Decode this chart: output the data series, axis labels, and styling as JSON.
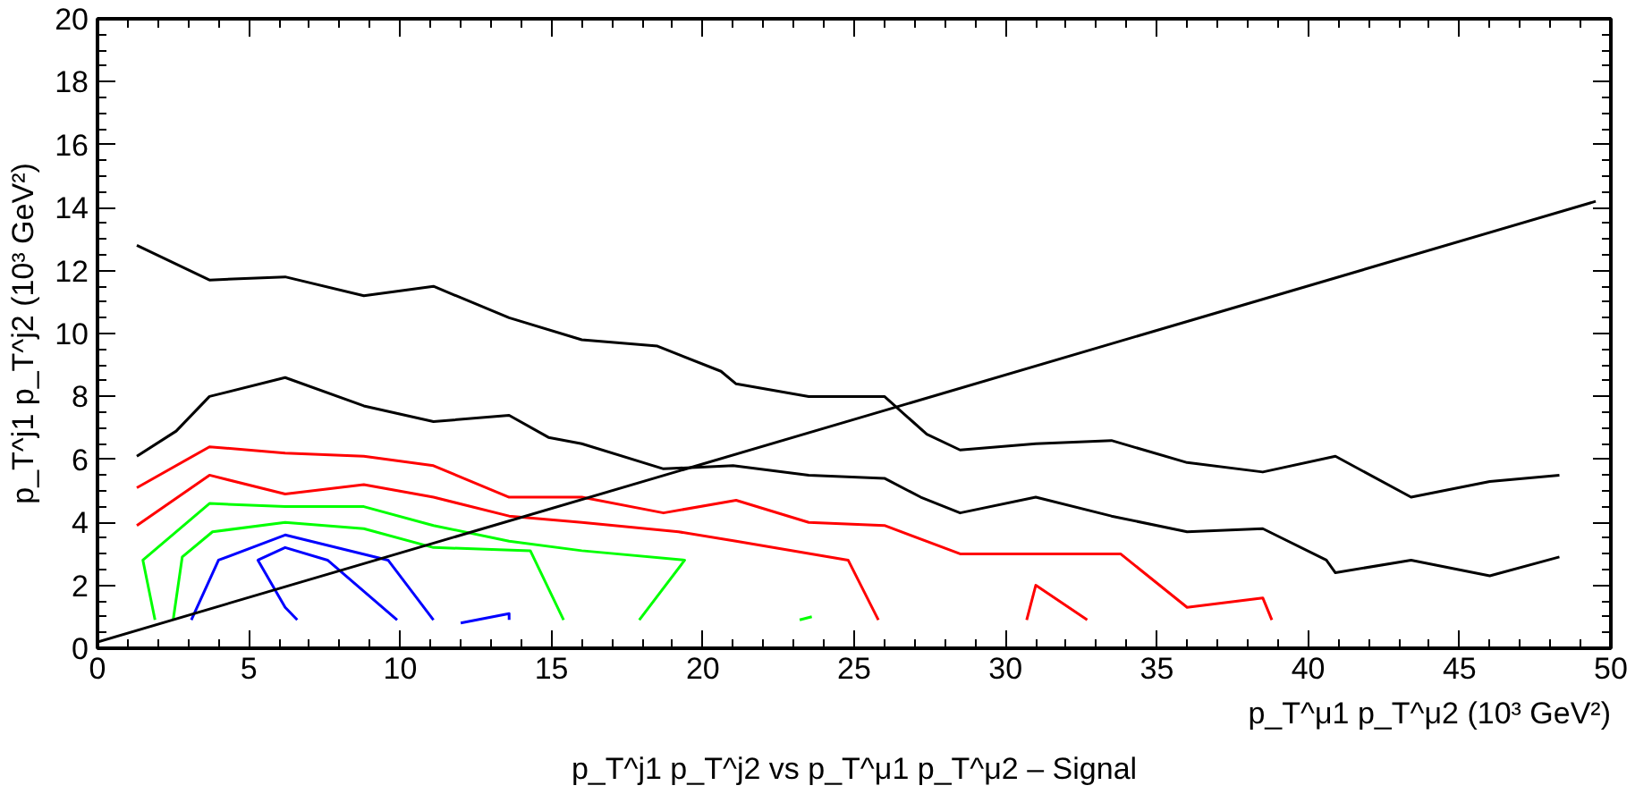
{
  "chart_data": {
    "type": "line",
    "title": "p_T^j1 p_T^j2 vs p_T^μ1 p_T^μ2 – Signal",
    "xlabel": "p_T^μ1 p_T^μ2 (10³ GeV²)",
    "ylabel": "p_T^j1 p_T^j2 (10³ GeV²)",
    "xlim": [
      0,
      50
    ],
    "ylim": [
      0,
      20
    ],
    "xticks": [
      0,
      5,
      10,
      15,
      20,
      25,
      30,
      35,
      40,
      45,
      50
    ],
    "yticks": [
      0,
      2,
      4,
      6,
      8,
      10,
      12,
      14,
      16,
      18,
      20
    ],
    "grid": false,
    "marker": "none",
    "line_style": "solid",
    "series": [
      {
        "color": "#000000",
        "x": [
          1.3,
          3.7,
          6.2,
          8.8,
          11.1,
          13.6,
          16.0,
          18.5,
          20.6,
          21.1,
          23.5,
          26.0,
          27.4,
          28.5,
          31.0,
          33.5,
          36.0,
          38.5,
          40.9,
          43.4,
          46.0,
          48.3
        ],
        "values": [
          12.8,
          11.7,
          11.8,
          11.2,
          11.5,
          10.5,
          9.8,
          9.6,
          8.8,
          8.4,
          8.0,
          8.0,
          6.8,
          6.3,
          6.5,
          6.6,
          5.9,
          5.6,
          6.1,
          4.8,
          5.3,
          5.5
        ]
      },
      {
        "color": "#000000",
        "x": [
          1.3,
          2.6,
          3.7,
          6.2,
          8.8,
          11.1,
          13.6,
          14.9,
          16.0,
          18.7,
          21.0,
          23.5,
          26.0,
          27.2,
          28.5,
          31.0,
          33.5,
          36.0,
          38.5,
          40.6,
          40.9,
          43.4,
          46.0,
          48.3
        ],
        "values": [
          6.1,
          6.9,
          8.0,
          8.6,
          7.7,
          7.2,
          7.4,
          6.7,
          6.5,
          5.7,
          5.8,
          5.5,
          5.4,
          4.8,
          4.3,
          4.8,
          4.2,
          3.7,
          3.8,
          2.8,
          2.4,
          2.8,
          2.3,
          2.9
        ]
      },
      {
        "color": "#ff0000",
        "x": [
          1.3,
          3.7,
          6.2,
          8.8,
          11.1,
          13.6,
          16.0,
          18.7,
          21.1,
          23.5,
          26.0,
          28.5,
          31.0,
          33.8,
          36.0,
          38.5,
          38.8
        ],
        "values": [
          5.1,
          6.4,
          6.2,
          6.1,
          5.8,
          4.8,
          4.8,
          4.3,
          4.7,
          4.0,
          3.9,
          3.0,
          3.0,
          3.0,
          1.3,
          1.6,
          0.9
        ]
      },
      {
        "color": "#ff0000",
        "x": [
          1.3,
          3.7,
          6.2,
          8.8,
          11.1,
          13.6,
          16.0,
          19.2,
          21.1,
          24.8,
          25.8
        ],
        "values": [
          3.9,
          5.5,
          4.9,
          5.2,
          4.8,
          4.2,
          4.0,
          3.7,
          3.4,
          2.8,
          0.9
        ]
      },
      {
        "color": "#ff0000",
        "x": [
          30.7,
          31.0,
          32.7
        ],
        "values": [
          0.9,
          2.0,
          0.9
        ]
      },
      {
        "color": "#00ff00",
        "x": [
          1.9,
          1.5,
          3.7,
          6.2,
          8.8,
          11.1,
          13.6,
          16.0,
          19.4,
          17.9
        ],
        "values": [
          0.9,
          2.8,
          4.6,
          4.5,
          4.5,
          3.9,
          3.4,
          3.1,
          2.8,
          0.9
        ]
      },
      {
        "color": "#00ff00",
        "x": [
          2.5,
          2.8,
          3.8,
          6.2,
          8.8,
          11.1,
          14.3,
          15.4
        ],
        "values": [
          0.9,
          2.9,
          3.7,
          4.0,
          3.8,
          3.2,
          3.1,
          0.9
        ]
      },
      {
        "color": "#00ff00",
        "x": [
          23.2,
          23.6
        ],
        "values": [
          0.9,
          1.0
        ]
      },
      {
        "color": "#0000ff",
        "x": [
          3.1,
          4.0,
          6.2,
          9.6,
          11.1
        ],
        "values": [
          0.9,
          2.8,
          3.6,
          2.8,
          0.9
        ]
      },
      {
        "color": "#0000ff",
        "x": [
          6.6,
          6.2,
          5.3,
          6.2,
          7.6,
          9.9
        ],
        "values": [
          0.9,
          1.3,
          2.8,
          3.2,
          2.8,
          0.9
        ]
      },
      {
        "color": "#0000ff",
        "x": [
          12.0,
          13.6,
          13.6
        ],
        "values": [
          0.8,
          1.1,
          0.9
        ]
      },
      {
        "color": "#000000",
        "x": [
          0,
          49.5
        ],
        "values": [
          0.2,
          14.2
        ]
      }
    ]
  }
}
